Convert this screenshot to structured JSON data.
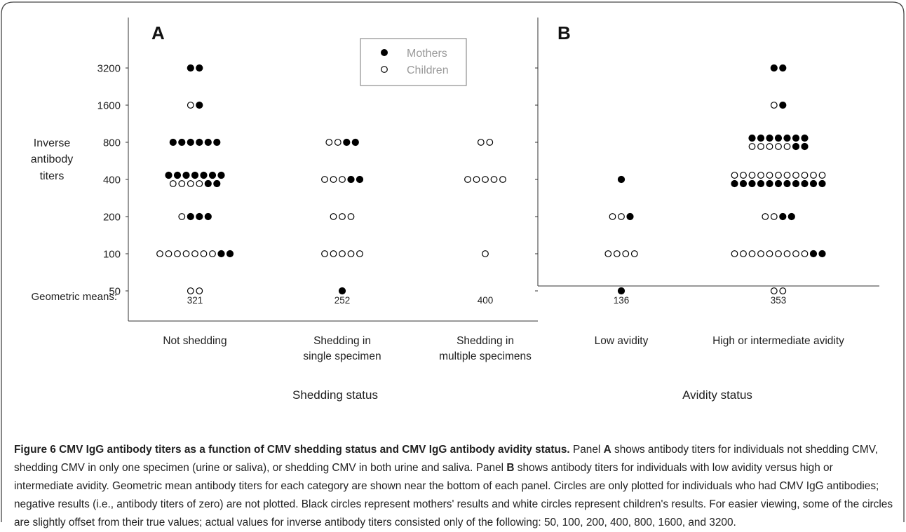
{
  "chart_data": {
    "type": "scatter",
    "y_axis": {
      "title": [
        "Inverse",
        "antibody",
        "titers"
      ],
      "ticks": [
        50,
        100,
        200,
        400,
        800,
        1600,
        3200
      ],
      "scale": "log2"
    },
    "means_label": "Geometric means:",
    "legend": {
      "placement": "top-center",
      "entries": [
        {
          "label": "Mothers",
          "fill": "#000000"
        },
        {
          "label": "Children",
          "fill": "#ffffff"
        }
      ]
    },
    "panels": [
      {
        "label": "A",
        "xlabel": "Shedding status",
        "groups": [
          {
            "category": "Not shedding",
            "mean": "321",
            "counts": {
              "3200": {
                "mothers": 2,
                "children": 0
              },
              "1600": {
                "mothers": 1,
                "children": 1
              },
              "800": {
                "mothers": 6,
                "children": 0
              },
              "400": {
                "mothers": 9,
                "children": 4
              },
              "200": {
                "mothers": 3,
                "children": 1
              },
              "100": {
                "mothers": 2,
                "children": 7
              },
              "50": {
                "mothers": 0,
                "children": 2
              }
            }
          },
          {
            "category": "Shedding in single specimen",
            "mean": "252",
            "counts": {
              "800": {
                "mothers": 2,
                "children": 2
              },
              "400": {
                "mothers": 2,
                "children": 3
              },
              "200": {
                "mothers": 0,
                "children": 3
              },
              "100": {
                "mothers": 0,
                "children": 5
              },
              "50": {
                "mothers": 1,
                "children": 0
              }
            }
          },
          {
            "category": "Shedding in multiple specimens",
            "mean": "400",
            "counts": {
              "800": {
                "mothers": 0,
                "children": 2
              },
              "400": {
                "mothers": 0,
                "children": 5
              },
              "100": {
                "mothers": 0,
                "children": 1
              }
            }
          }
        ]
      },
      {
        "label": "B",
        "xlabel": "Avidity status",
        "groups": [
          {
            "category": "Low avidity",
            "mean": "136",
            "counts": {
              "400": {
                "mothers": 1,
                "children": 0
              },
              "200": {
                "mothers": 1,
                "children": 2
              },
              "100": {
                "mothers": 0,
                "children": 4
              },
              "50": {
                "mothers": 1,
                "children": 0
              }
            }
          },
          {
            "category": "High or intermediate avidity",
            "mean": "353",
            "counts": {
              "3200": {
                "mothers": 2,
                "children": 0
              },
              "1600": {
                "mothers": 1,
                "children": 1
              },
              "800": {
                "mothers": 9,
                "children": 5
              },
              "400": {
                "mothers": 11,
                "children": 11
              },
              "200": {
                "mothers": 2,
                "children": 2
              },
              "100": {
                "mothers": 2,
                "children": 9
              },
              "50": {
                "mothers": 0,
                "children": 2
              }
            }
          }
        ]
      }
    ]
  },
  "caption": {
    "lead": "Figure 6 CMV IgG antibody titers as a function of CMV shedding status and CMV IgG antibody avidity status.",
    "s1": " Panel ",
    "p_a": "A",
    "s2": " shows antibody titers for individuals not shedding CMV, shedding CMV in only one specimen (urine or saliva), or shedding CMV in both urine and saliva. Panel ",
    "p_b": "B",
    "s3": " shows antibody titers for individuals with low avidity versus high or intermediate avidity. Geometric mean antibody titers for each category are shown near the bottom of each panel. Circles are only plotted for individuals who had CMV IgG antibodies; negative results (i.e., antibody titers of zero) are not plotted. Black circles represent mothers' results and white circles represent children's results. For easier viewing, some of the circles are slightly offset from their true values; actual values for inverse antibody titers consisted only of the following: 50, 100, 200, 400, 800, 1600, and 3200."
  }
}
